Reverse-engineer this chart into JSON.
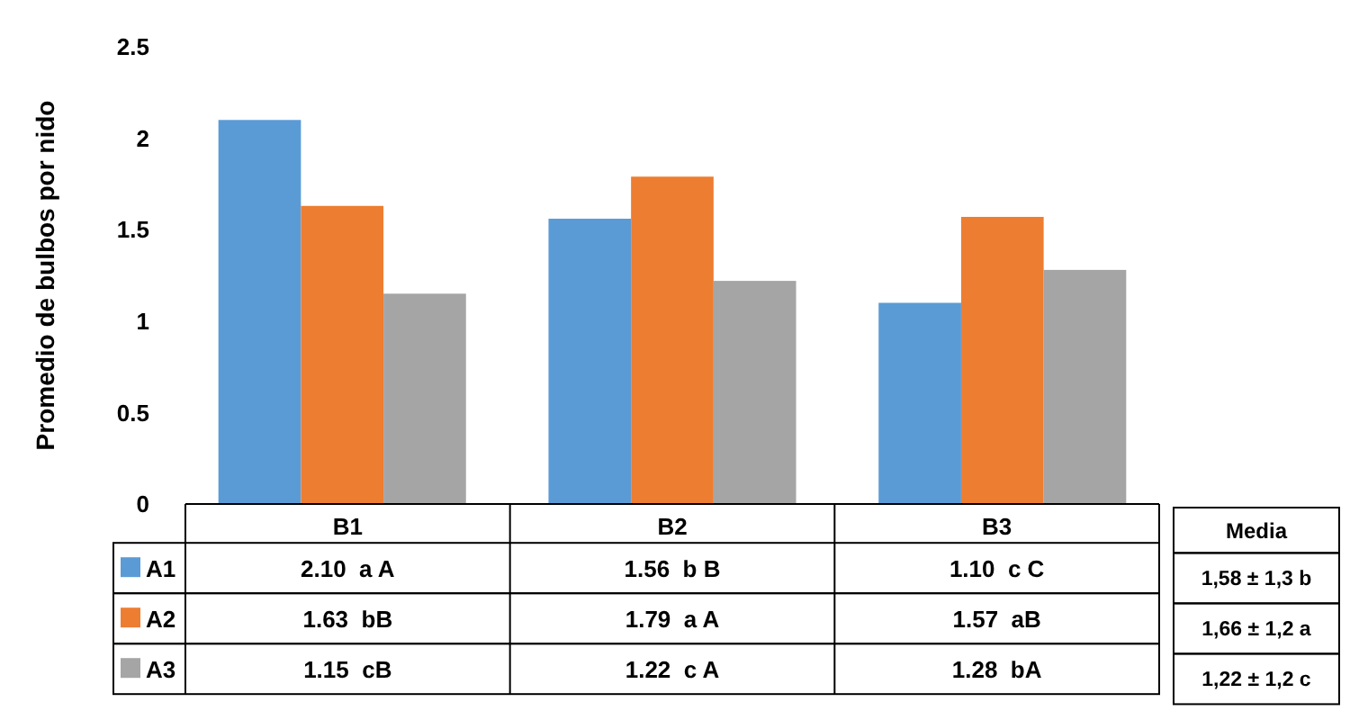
{
  "chart_data": {
    "type": "bar",
    "ylabel": "Promedio de bulbos por nido",
    "categories": [
      "B1",
      "B2",
      "B3"
    ],
    "series": [
      {
        "name": "A1",
        "color": "#5b9bd5",
        "values": [
          2.1,
          1.56,
          1.1
        ],
        "value_labels": [
          "2.10  a A",
          "1.56  b B",
          "1.10  c C"
        ]
      },
      {
        "name": "A2",
        "color": "#ed7d31",
        "values": [
          1.63,
          1.79,
          1.57
        ],
        "value_labels": [
          "1.63  bB",
          "1.79  a A",
          "1.57  aB"
        ]
      },
      {
        "name": "A3",
        "color": "#a5a5a5",
        "values": [
          1.15,
          1.22,
          1.28
        ],
        "value_labels": [
          "1.15  cB",
          "1.22  c A",
          "1.28  bA"
        ]
      }
    ],
    "ylim": [
      0,
      2.5
    ],
    "yticks": [
      0,
      0.5,
      1,
      1.5,
      2,
      2.5
    ],
    "grid": false,
    "legend": "bottom",
    "annotations": [
      "Media",
      "1,58 ± 1,3 b",
      "1,66 ± 1,2 a",
      "1,22 ± 1,2 c"
    ]
  }
}
